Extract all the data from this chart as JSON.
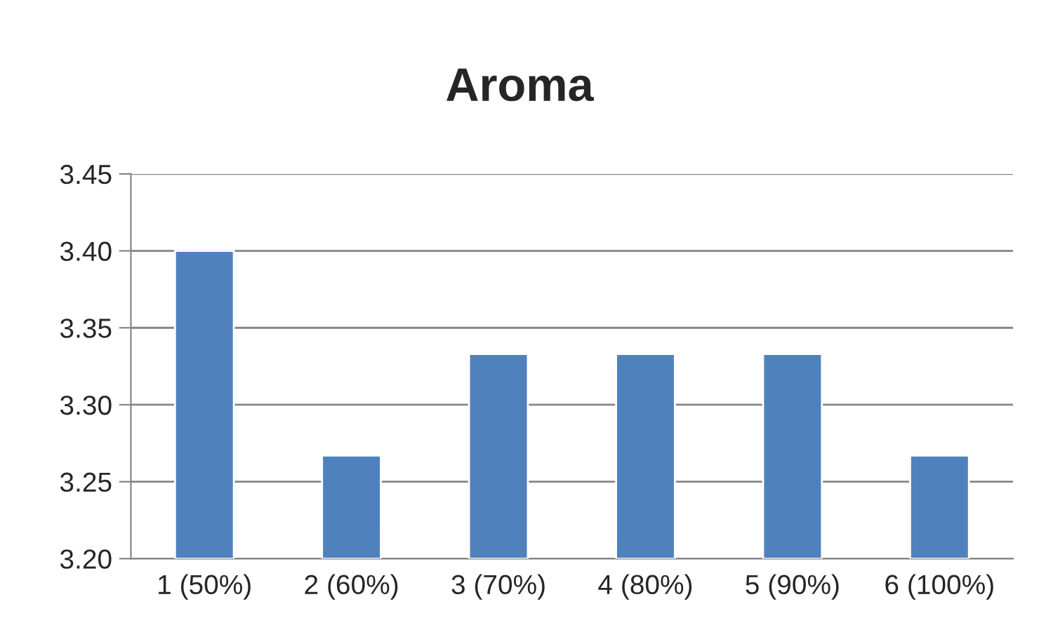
{
  "chart_data": {
    "type": "bar",
    "title": "Aroma",
    "categories": [
      "1 (50%)",
      "2 (60%)",
      "3 (70%)",
      "4 (80%)",
      "5 (90%)",
      "6 (100%)"
    ],
    "values": [
      3.4,
      3.267,
      3.333,
      3.333,
      3.333,
      3.267
    ],
    "color": "#4f81bd",
    "ylim": [
      3.2,
      3.45
    ],
    "yticks": [
      {
        "value": 3.2,
        "label": "3.20"
      },
      {
        "value": 3.25,
        "label": "3.25"
      },
      {
        "value": 3.3,
        "label": "3.30"
      },
      {
        "value": 3.35,
        "label": "3.35"
      },
      {
        "value": 3.4,
        "label": "3.40"
      },
      {
        "value": 3.45,
        "label": "3.45"
      }
    ],
    "grid": "y",
    "legend": false
  }
}
